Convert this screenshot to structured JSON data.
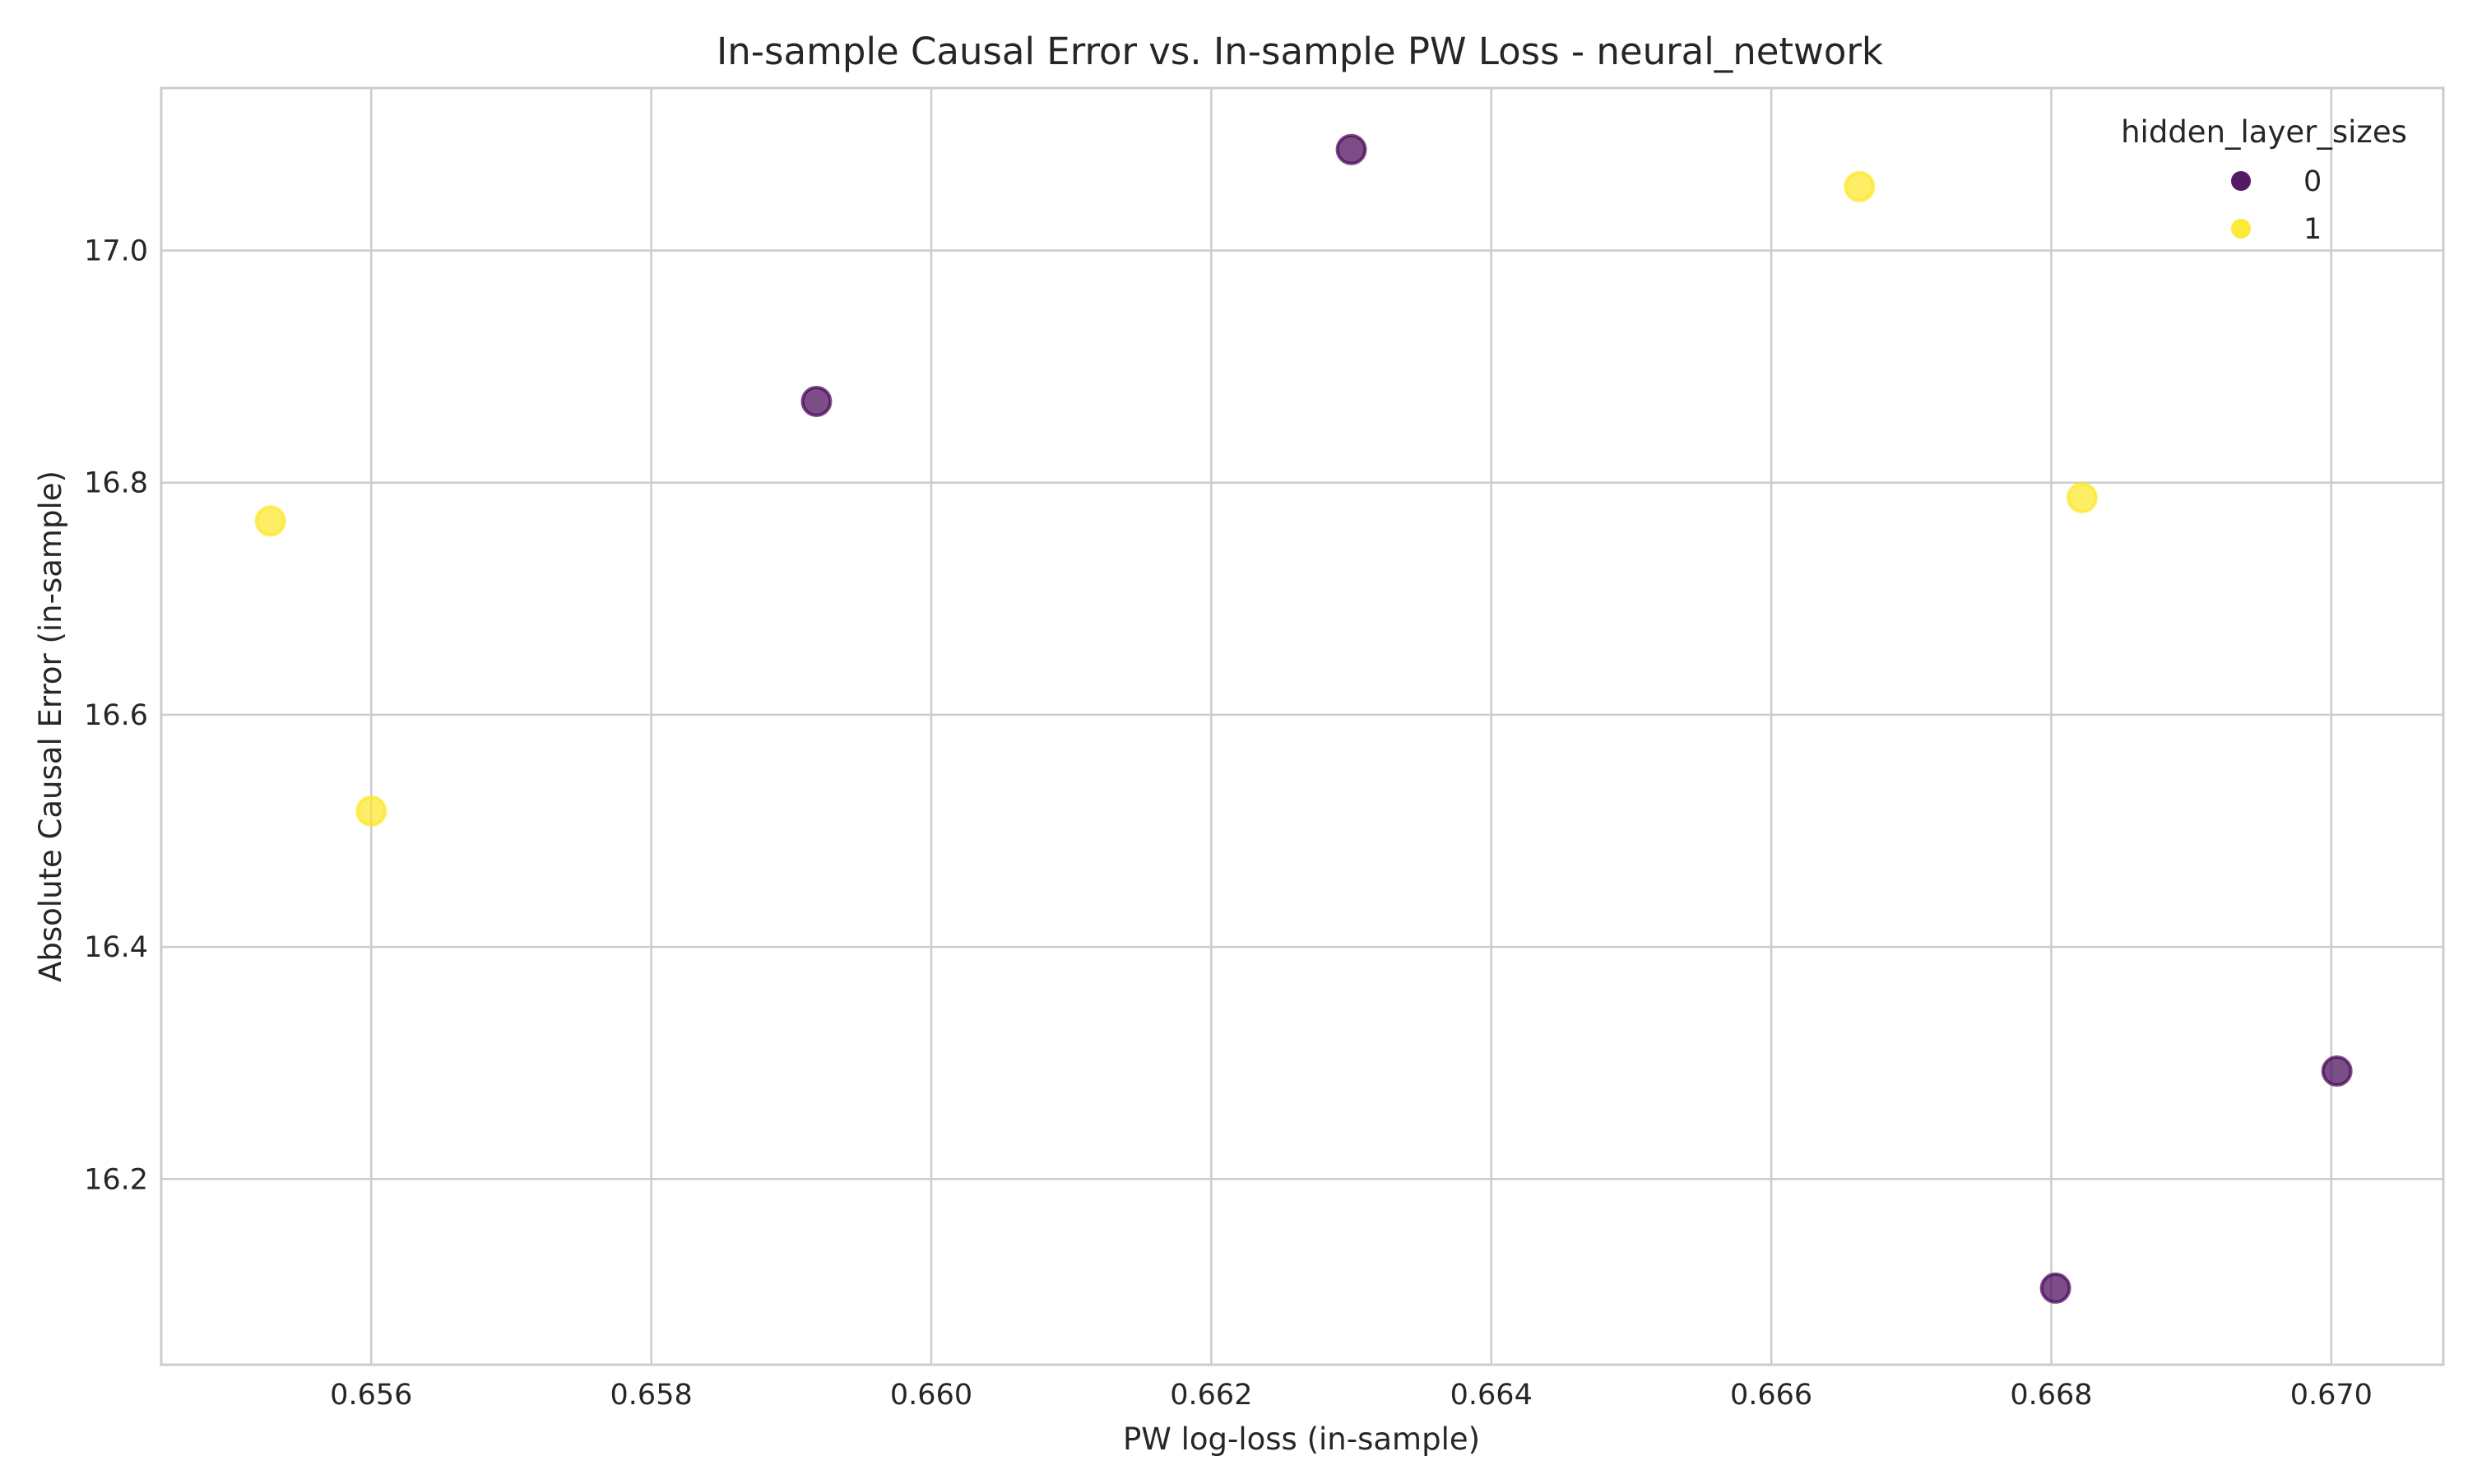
{
  "chart_data": {
    "type": "scatter",
    "title": "In-sample Causal Error vs. In-sample PW Loss - neural_network",
    "xlabel": "PW log-loss (in-sample)",
    "ylabel": "Absolute Causal Error (in-sample)",
    "xlim": [
      0.6545,
      0.6708
    ],
    "ylim": [
      16.04,
      17.14
    ],
    "xticks": [
      0.656,
      0.658,
      0.66,
      0.662,
      0.664,
      0.666,
      0.668,
      0.67
    ],
    "xtick_labels": [
      "0.656",
      "0.658",
      "0.660",
      "0.662",
      "0.664",
      "0.666",
      "0.668",
      "0.670"
    ],
    "yticks": [
      16.2,
      16.4,
      16.6,
      16.8,
      17.0
    ],
    "ytick_labels": [
      "16.2",
      "16.4",
      "16.6",
      "16.8",
      "17.0"
    ],
    "grid": true,
    "legend": {
      "title": "hidden_layer_sizes",
      "placement": "top-right",
      "entries": [
        {
          "label": "0",
          "color": "#440154"
        },
        {
          "label": "1",
          "color": "#fde725"
        }
      ]
    },
    "series": [
      {
        "name": "0",
        "color": "#440154",
        "points": [
          {
            "x": 0.65918,
            "y": 16.87
          },
          {
            "x": 0.663,
            "y": 17.087
          },
          {
            "x": 0.66803,
            "y": 16.106
          },
          {
            "x": 0.67004,
            "y": 16.293
          }
        ]
      },
      {
        "name": "1",
        "color": "#fde725",
        "points": [
          {
            "x": 0.65528,
            "y": 16.767
          },
          {
            "x": 0.656,
            "y": 16.517
          },
          {
            "x": 0.66663,
            "y": 17.055
          },
          {
            "x": 0.66822,
            "y": 16.787
          }
        ]
      }
    ],
    "point_alpha": 0.7
  }
}
